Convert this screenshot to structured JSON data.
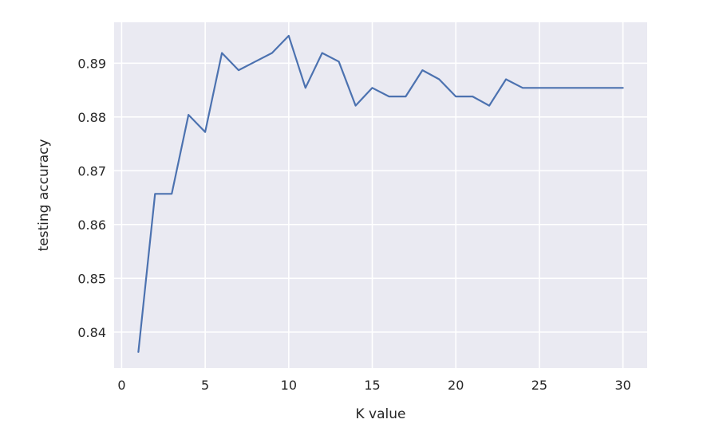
{
  "chart_data": {
    "type": "line",
    "title": "",
    "xlabel": "K value",
    "ylabel": "testing accuracy",
    "xlim": [
      -0.45,
      31.45
    ],
    "ylim": [
      0.8333,
      0.8976
    ],
    "xticks": [
      0,
      5,
      10,
      15,
      20,
      25,
      30
    ],
    "xtick_labels": [
      "0",
      "5",
      "10",
      "15",
      "20",
      "25",
      "30"
    ],
    "yticks": [
      0.84,
      0.85,
      0.86,
      0.87,
      0.88,
      0.89
    ],
    "ytick_labels": [
      "0.84",
      "0.85",
      "0.86",
      "0.87",
      "0.88",
      "0.89"
    ],
    "grid": true,
    "style": "seaborn-darkgrid",
    "colors": {
      "background": "#eaeaf2",
      "grid": "#ffffff",
      "line": "#4c72b0"
    },
    "series": [
      {
        "x": [
          1,
          2,
          3,
          4,
          5,
          6,
          7,
          8,
          9,
          10,
          11,
          12,
          13,
          14,
          15,
          16,
          17,
          18,
          19,
          20,
          21,
          22,
          23,
          24,
          25,
          26,
          27,
          28,
          29,
          30
        ],
        "values": [
          0.8363,
          0.8657,
          0.8657,
          0.8804,
          0.8772,
          0.8919,
          0.8887,
          0.8903,
          0.8919,
          0.8951,
          0.8854,
          0.8919,
          0.8903,
          0.8821,
          0.8854,
          0.8838,
          0.8838,
          0.8887,
          0.887,
          0.8838,
          0.8838,
          0.8821,
          0.887,
          0.8854,
          0.8854,
          0.8854,
          0.8854,
          0.8854,
          0.8854,
          0.8854
        ]
      }
    ]
  }
}
